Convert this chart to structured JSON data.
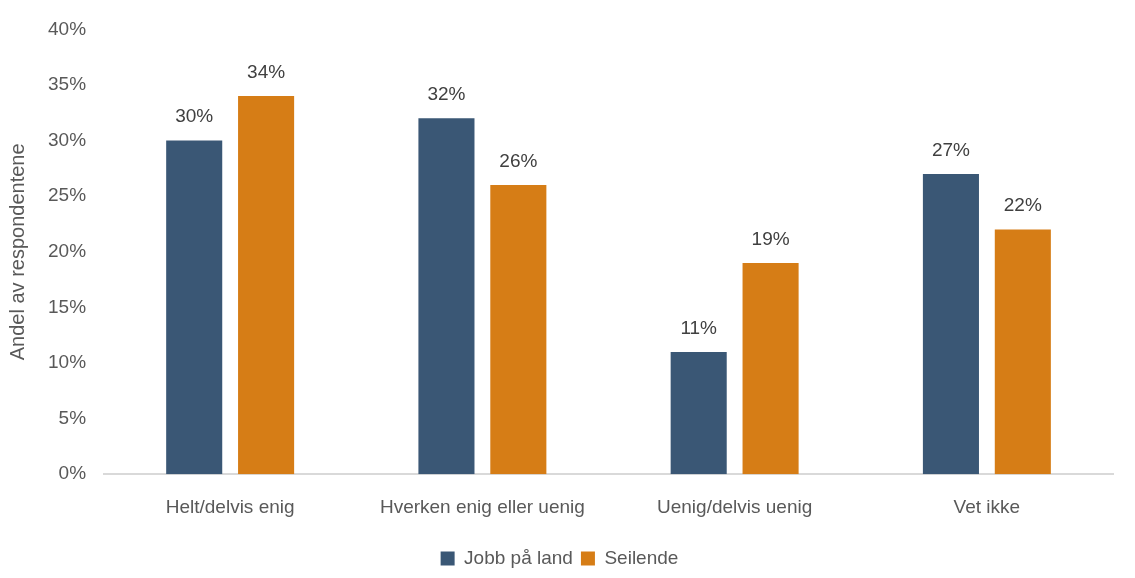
{
  "chart_data": {
    "type": "bar",
    "ylabel": "Andel av respondentene",
    "categories": [
      "Helt/delvis enig",
      "Hverken enig eller uenig",
      "Uenig/delvis uenig",
      "Vet ikke"
    ],
    "series": [
      {
        "name": "Jobb på land",
        "color": "#3a5775",
        "values": [
          30,
          32,
          11,
          27
        ],
        "value_labels": [
          "30%",
          "32%",
          "11%",
          "27%"
        ]
      },
      {
        "name": "Seilende",
        "color": "#d67d16",
        "values": [
          34,
          26,
          19,
          22
        ],
        "value_labels": [
          "34%",
          "26%",
          "19%",
          "22%"
        ]
      }
    ],
    "ylim": [
      0,
      40
    ],
    "yticks": [
      {
        "value": 0,
        "label": "0%"
      },
      {
        "value": 5,
        "label": "5%"
      },
      {
        "value": 10,
        "label": "10%"
      },
      {
        "value": 15,
        "label": "15%"
      },
      {
        "value": 20,
        "label": "20%"
      },
      {
        "value": 25,
        "label": "25%"
      },
      {
        "value": 30,
        "label": "30%"
      },
      {
        "value": 35,
        "label": "35%"
      },
      {
        "value": 40,
        "label": "40%"
      }
    ],
    "grid": false,
    "legend": "bottom"
  }
}
